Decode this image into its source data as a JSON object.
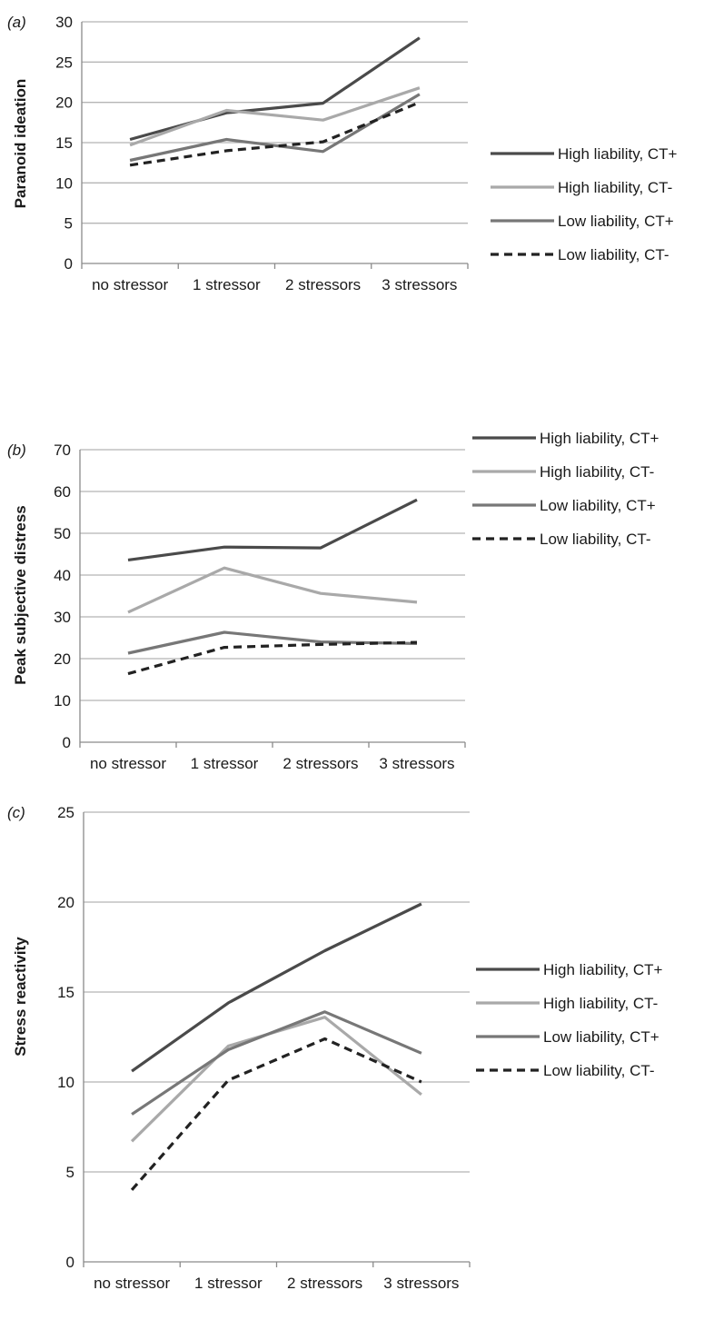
{
  "chart_data": [
    {
      "type": "line",
      "panel_label": "(a)",
      "title": "",
      "xlabel": "",
      "ylabel": "Paranoid ideation",
      "categories": [
        "no stressor",
        "1 stressor",
        "2 stressors",
        "3 stressors"
      ],
      "ylim": [
        0,
        30
      ],
      "yticks": [
        0,
        5,
        10,
        15,
        20,
        25,
        30
      ],
      "grid": true,
      "legend_position": "right",
      "series": [
        {
          "name": "High liability, CT+",
          "values": [
            15.4,
            18.7,
            19.9,
            28.0
          ],
          "color": "#4a4a4a",
          "dash": "solid"
        },
        {
          "name": "High liability, CT-",
          "values": [
            14.7,
            19.0,
            17.8,
            21.8
          ],
          "color": "#a9a9a9",
          "dash": "solid"
        },
        {
          "name": "Low liability, CT+",
          "values": [
            12.8,
            15.4,
            13.9,
            21.0
          ],
          "color": "#777777",
          "dash": "solid"
        },
        {
          "name": "Low liability, CT-",
          "values": [
            12.2,
            14.0,
            15.1,
            20.0
          ],
          "color": "#222222",
          "dash": "dashed"
        }
      ]
    },
    {
      "type": "line",
      "panel_label": "(b)",
      "title": "",
      "xlabel": "",
      "ylabel": "Peak subjective distress",
      "categories": [
        "no stressor",
        "1 stressor",
        "2 stressors",
        "3 stressors"
      ],
      "ylim": [
        0,
        70
      ],
      "yticks": [
        0,
        10,
        20,
        30,
        40,
        50,
        60,
        70
      ],
      "grid": true,
      "legend_position": "right",
      "series": [
        {
          "name": "High liability, CT+",
          "values": [
            43.6,
            46.7,
            46.5,
            58.0
          ],
          "color": "#4a4a4a",
          "dash": "solid"
        },
        {
          "name": "High liability, CT-",
          "values": [
            31.1,
            41.7,
            35.6,
            33.5
          ],
          "color": "#a9a9a9",
          "dash": "solid"
        },
        {
          "name": "Low liability, CT+",
          "values": [
            21.3,
            26.3,
            24.0,
            23.6
          ],
          "color": "#777777",
          "dash": "solid"
        },
        {
          "name": "Low liability, CT-",
          "values": [
            16.4,
            22.7,
            23.4,
            23.9
          ],
          "color": "#222222",
          "dash": "dashed"
        }
      ]
    },
    {
      "type": "line",
      "panel_label": "(c)",
      "title": "",
      "xlabel": "",
      "ylabel": "Stress reactivity",
      "categories": [
        "no stressor",
        "1 stressor",
        "2 stressors",
        "3 stressors"
      ],
      "ylim": [
        0,
        25
      ],
      "yticks": [
        0,
        5,
        10,
        15,
        20,
        25
      ],
      "grid": true,
      "legend_position": "right",
      "series": [
        {
          "name": "High liability, CT+",
          "values": [
            10.6,
            14.4,
            17.3,
            19.9
          ],
          "color": "#4a4a4a",
          "dash": "solid"
        },
        {
          "name": "High liability, CT-",
          "values": [
            6.7,
            12.0,
            13.6,
            9.3
          ],
          "color": "#a9a9a9",
          "dash": "solid"
        },
        {
          "name": "Low liability, CT+",
          "values": [
            8.2,
            11.8,
            13.9,
            11.6
          ],
          "color": "#777777",
          "dash": "solid"
        },
        {
          "name": "Low liability, CT-",
          "values": [
            4.0,
            10.1,
            12.4,
            10.0
          ],
          "color": "#222222",
          "dash": "dashed"
        }
      ]
    }
  ]
}
